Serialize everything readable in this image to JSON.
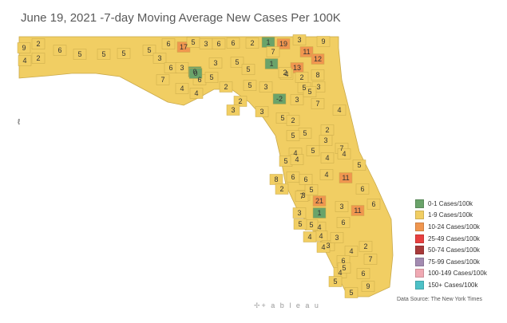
{
  "title": "June 19, 2021 -7-day Moving Average New Cases Per 100K",
  "source": "Data Source: The New York Times",
  "brand": "+ a b l e a u",
  "side_mark": "ℓ",
  "colors": {
    "c0": "#6aa36a",
    "c1": "#f1ce63",
    "c2": "#f0964f",
    "c3": "#e84040",
    "c4": "#a83a3a",
    "c5": "#a38bb1",
    "c6": "#f0a9b3",
    "c7": "#4dc1c7"
  },
  "legend": [
    {
      "label": "0-1 Cases/100k",
      "color": "#6aa36a"
    },
    {
      "label": "1-9 Cases/100k",
      "color": "#f1ce63"
    },
    {
      "label": "10-24 Cases/100k",
      "color": "#f0964f"
    },
    {
      "label": "25-49 Cases/100k",
      "color": "#e84040"
    },
    {
      "label": "50-74 Cases/100k",
      "color": "#a83a3a"
    },
    {
      "label": "75-99 Cases/100k",
      "color": "#a38bb1"
    },
    {
      "label": "100-149 Cases/100k",
      "color": "#f0a9b3"
    },
    {
      "label": "150+ Cases/100k",
      "color": "#4dc1c7"
    }
  ],
  "county_values": [
    "9",
    "2",
    "6",
    "5",
    "5",
    "5",
    "5",
    "6",
    "4",
    "2",
    "3",
    "6",
    "3",
    "17",
    "5",
    "3",
    "6",
    "6",
    "2",
    "0",
    "3",
    "19",
    "3",
    "1",
    "11",
    "9",
    "5",
    "7",
    "12",
    "7",
    "4",
    "4",
    "6",
    "0",
    "5",
    "1",
    "13",
    "2",
    "5",
    "2",
    "5",
    "3",
    "4",
    "5",
    "3",
    "8",
    "2",
    "3",
    "2",
    "-2",
    "3",
    "7",
    "5",
    "3",
    "5",
    "4",
    "2",
    "5",
    "5",
    "4",
    "2",
    "5",
    "3",
    "5",
    "4",
    "7",
    "6",
    "5",
    "6",
    "4",
    "8",
    "3",
    "2",
    "4",
    "4",
    "7",
    "11",
    "5",
    "6",
    "4",
    "21",
    "3",
    "6",
    "5",
    "3",
    "1",
    "11",
    "5",
    "4",
    "6",
    "3",
    "3",
    "4",
    "2",
    "4",
    "4",
    "6",
    "7",
    "6",
    "9",
    "5",
    "5",
    "5",
    "4"
  ]
}
